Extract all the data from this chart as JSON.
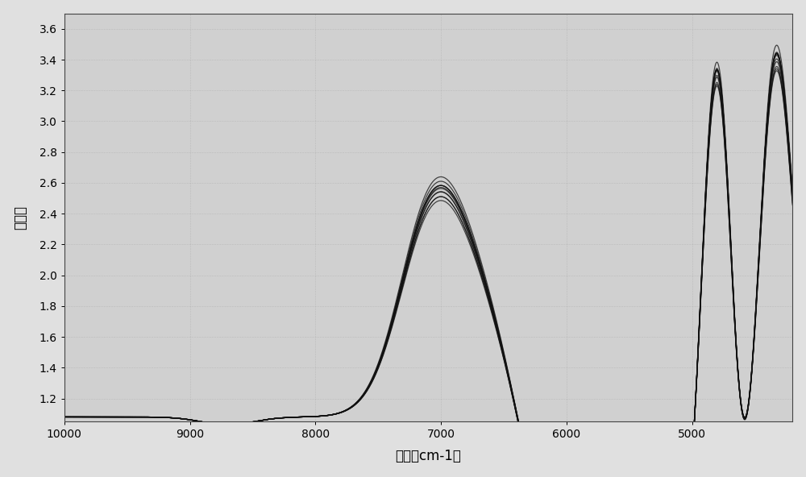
{
  "xlabel": "波数（cm-1）",
  "ylabel": "吸光度",
  "xlim": [
    10000,
    4200
  ],
  "ylim": [
    1.05,
    3.7
  ],
  "yticks": [
    1.2,
    1.4,
    1.6,
    1.8,
    2.0,
    2.2,
    2.4,
    2.6,
    2.8,
    3.0,
    3.2,
    3.4,
    3.6
  ],
  "xticks": [
    10000,
    9000,
    8000,
    7000,
    6000,
    5000
  ],
  "n_curves": 12,
  "background_color": "#e0e0e0",
  "plot_bg_color": "#d0d0d0",
  "line_color": "#111111",
  "line_alpha": 0.75,
  "line_width": 0.9
}
